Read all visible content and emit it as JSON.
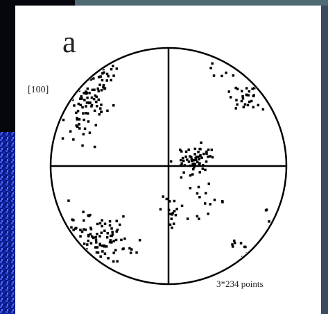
{
  "panel_label": "a",
  "direction_label": "[100]",
  "point_count_label": "3*234 points"
}
